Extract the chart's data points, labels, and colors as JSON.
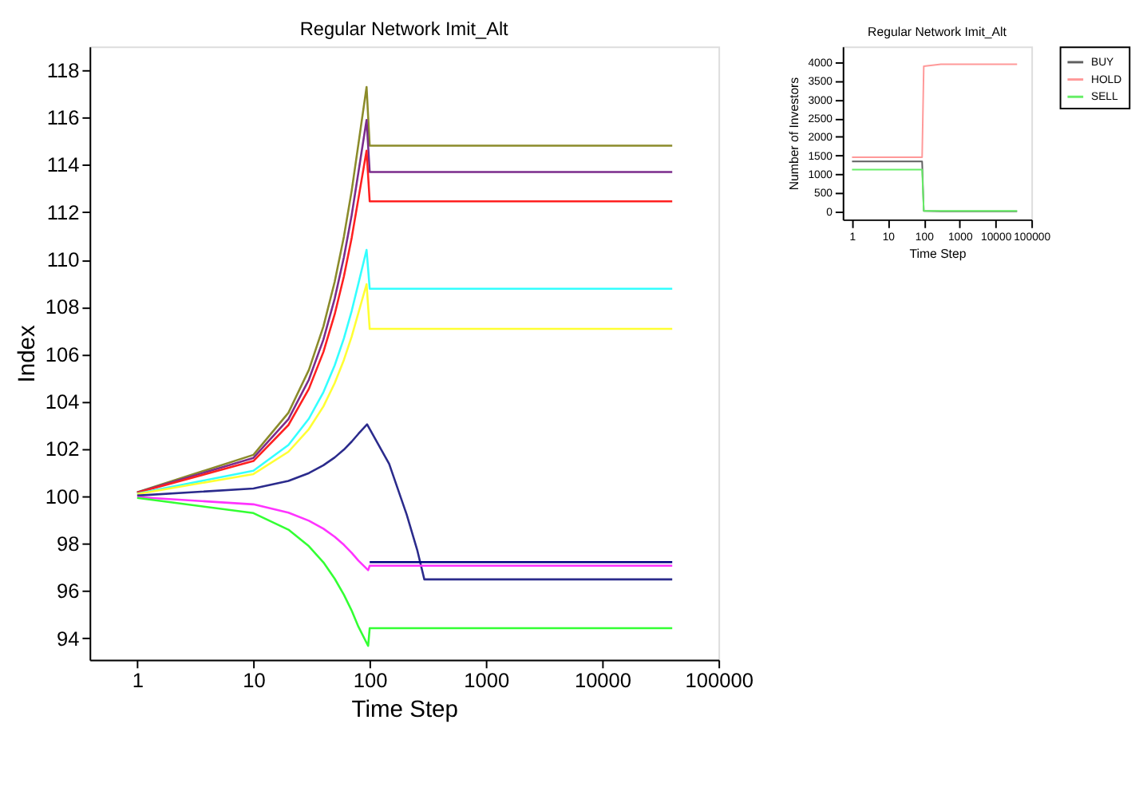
{
  "chart_data": [
    {
      "type": "line",
      "title": "Regular Network Imit_Alt",
      "xlabel": "Time Step",
      "ylabel": "Index",
      "log": "x",
      "xlim": [
        0.39,
        100000
      ],
      "xticks": [
        1,
        10,
        100,
        1000,
        10000,
        100000
      ],
      "ylim": [
        93.1,
        119
      ],
      "yticks": [
        94,
        96,
        98,
        100,
        102,
        104,
        106,
        108,
        110,
        112,
        114,
        116,
        118
      ],
      "line_style": "solid",
      "series": [
        {
          "color": "#8b8b2a",
          "x": [
            1,
            10,
            20,
            30,
            40,
            50,
            60,
            70,
            80,
            94,
            100,
            40000
          ],
          "values": [
            100.17,
            101.75,
            103.53,
            105.34,
            107.18,
            109.06,
            110.97,
            112.91,
            114.88,
            117.29,
            114.81,
            114.81
          ]
        },
        {
          "color": "#7b2c8c",
          "x": [
            1,
            10,
            20,
            30,
            40,
            50,
            60,
            70,
            80,
            94,
            100,
            40000
          ],
          "values": [
            100.16,
            101.62,
            103.26,
            104.93,
            106.62,
            108.35,
            110.1,
            111.88,
            113.69,
            115.9,
            113.7,
            113.7
          ]
        },
        {
          "color": "#ff2020",
          "x": [
            1,
            10,
            20,
            30,
            40,
            50,
            60,
            70,
            80,
            94,
            100,
            40000
          ],
          "values": [
            100.15,
            101.49,
            103.01,
            104.54,
            106.1,
            107.69,
            109.29,
            110.92,
            112.58,
            114.6,
            112.46,
            112.46
          ]
        },
        {
          "color": "#33ffff",
          "x": [
            1,
            10,
            20,
            30,
            40,
            50,
            60,
            70,
            80,
            94,
            100,
            40000
          ],
          "values": [
            100.11,
            101.08,
            102.17,
            103.28,
            104.4,
            105.53,
            106.67,
            107.83,
            108.99,
            110.41,
            108.77,
            108.77
          ]
        },
        {
          "color": "#ffff33",
          "x": [
            1,
            10,
            20,
            30,
            40,
            50,
            60,
            70,
            80,
            94,
            100,
            40000
          ],
          "values": [
            100.09,
            100.94,
            101.88,
            102.84,
            103.8,
            104.78,
            105.76,
            106.75,
            107.75,
            108.96,
            107.07,
            107.07
          ]
        },
        {
          "color": "#2b2b8c",
          "x": [
            1,
            10,
            20,
            30,
            40,
            50,
            60,
            70,
            80,
            95,
            147,
            208,
            256,
            295,
            40000
          ],
          "values": [
            100.03,
            100.33,
            100.65,
            100.98,
            101.31,
            101.64,
            101.97,
            102.31,
            102.64,
            103.04,
            101.37,
            99.23,
            97.74,
            96.49,
            96.49
          ]
        },
        {
          "color": "#000080",
          "x": [
            100,
            40000
          ],
          "values": [
            97.22,
            97.22
          ]
        },
        {
          "color": "#ff33ff",
          "x": [
            1,
            10,
            20,
            30,
            40,
            50,
            60,
            70,
            80,
            97,
            100,
            40000
          ],
          "values": [
            99.97,
            99.66,
            99.31,
            98.97,
            98.63,
            98.29,
            97.95,
            97.61,
            97.28,
            96.88,
            97.07,
            97.07
          ]
        },
        {
          "color": "#33ff33",
          "x": [
            1,
            10,
            20,
            30,
            40,
            50,
            60,
            70,
            80,
            97,
            100,
            40000
          ],
          "values": [
            99.93,
            99.29,
            98.59,
            97.89,
            97.21,
            96.52,
            95.84,
            95.17,
            94.49,
            93.68,
            94.43,
            94.43
          ]
        }
      ]
    },
    {
      "type": "line",
      "title": "Regular Network Imit_Alt",
      "xlabel": "Time Step",
      "ylabel": "Number of Investors",
      "log": "x",
      "xlim": [
        0.55,
        100000
      ],
      "xticks": [
        1,
        10,
        100,
        1000,
        10000,
        100000
      ],
      "ylim": [
        -220,
        4430
      ],
      "yticks": [
        0,
        500,
        1000,
        1500,
        2000,
        2500,
        3000,
        3500,
        4000
      ],
      "legend": "right",
      "line_style": "solid",
      "series": [
        {
          "name": "BUY",
          "color": "#606060",
          "x": [
            1,
            90,
            100,
            300,
            40000
          ],
          "values": [
            1340,
            1340,
            10,
            0,
            0
          ]
        },
        {
          "name": "HOLD",
          "color": "#ff9999",
          "x": [
            1,
            90,
            100,
            300,
            40000
          ],
          "values": [
            1450,
            1450,
            3900,
            3950,
            3950
          ]
        },
        {
          "name": "SELL",
          "color": "#66ee66",
          "x": [
            1,
            90,
            100,
            300,
            40000
          ],
          "values": [
            1120,
            1120,
            10,
            10,
            10
          ]
        }
      ]
    }
  ]
}
